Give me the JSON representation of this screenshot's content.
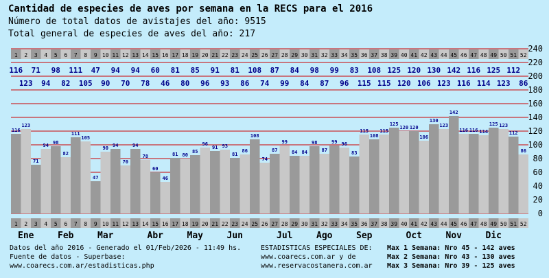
{
  "header": {
    "title": "Cantidad de especies de aves por semana en la RECS para el 2016",
    "line2": "Número de total datos de avistajes del año: 9515",
    "line3": " Total general de especies de aves del año: 217"
  },
  "footer": {
    "left1": "Datos del año 2016 - Generado el 01/Feb/2026 - 11:49 hs.",
    "left2": "Fuente de datos - Superbase:",
    "left3": "www.coarecs.com.ar/estadisticas.php",
    "mid1": "ESTADISTICAS ESPECIALES DE:",
    "mid2": "www.coarecs.com.ar y de",
    "mid3": "www.reservacostanera.com.ar",
    "right1": "Max 1 Semana: Nro 45 - 142 aves",
    "right2": "Max 2 Semana: Nro 43 - 130 aves",
    "right3": "Max 3 Semana: Nro 39 - 125 aves"
  },
  "colors": {
    "background": "#c4ecfb",
    "bar_dark": "#9a9a9a",
    "bar_light": "#c8c8c8",
    "gridline": "#cc0000",
    "value_label": "#00008b",
    "text": "#000000"
  },
  "chart_data": {
    "type": "bar",
    "ylim": [
      0,
      240
    ],
    "yticks": [
      0,
      20,
      40,
      60,
      80,
      100,
      120,
      140,
      160,
      180,
      200,
      220,
      240
    ],
    "grid": true,
    "weeks": [
      "1",
      "2",
      "3",
      "4",
      "5",
      "6",
      "7",
      "8",
      "9",
      "10",
      "11",
      "12",
      "13",
      "14",
      "15",
      "16",
      "17",
      "18",
      "19",
      "20",
      "21",
      "22",
      "23",
      "24",
      "25",
      "26",
      "27",
      "28",
      "29",
      "30",
      "31",
      "32",
      "33",
      "34",
      "35",
      "36",
      "37",
      "38",
      "39",
      "40",
      "41",
      "42",
      "43",
      "44",
      "45",
      "46",
      "47",
      "48",
      "49",
      "50",
      "51",
      "52"
    ],
    "values": [
      116,
      123,
      71,
      94,
      98,
      82,
      111,
      105,
      47,
      90,
      94,
      70,
      94,
      78,
      60,
      46,
      81,
      80,
      85,
      96,
      91,
      93,
      81,
      86,
      108,
      74,
      87,
      99,
      84,
      84,
      98,
      87,
      99,
      96,
      83,
      115,
      108,
      115,
      125,
      120,
      120,
      106,
      130,
      123,
      142,
      116,
      116,
      114,
      125,
      123,
      112,
      86
    ],
    "months": [
      {
        "label": "Ene",
        "week": 2
      },
      {
        "label": "Feb",
        "week": 6
      },
      {
        "label": "Mar",
        "week": 10
      },
      {
        "label": "Abr",
        "week": 15
      },
      {
        "label": "May",
        "week": 19
      },
      {
        "label": "Jun",
        "week": 23
      },
      {
        "label": "Jul",
        "week": 28
      },
      {
        "label": "Ago",
        "week": 32
      },
      {
        "label": "Sep",
        "week": 36
      },
      {
        "label": "Oct",
        "week": 41
      },
      {
        "label": "Nov",
        "week": 45
      },
      {
        "label": "Dic",
        "week": 49
      }
    ]
  }
}
